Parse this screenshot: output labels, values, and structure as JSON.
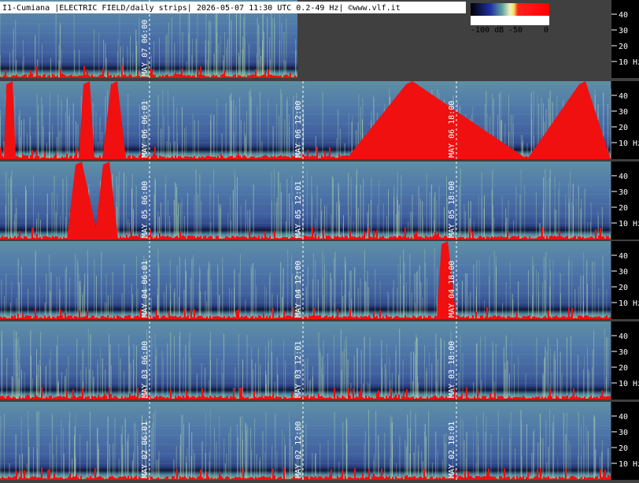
{
  "header": {
    "title": "I1-Cumiana |ELECTRIC FIELD/daily strips| 2026-05-07 11:30 UTC 0.2-49 Hz| ©www.vlf.it"
  },
  "colorbar": {
    "labels": [
      "-100 dB",
      "-50",
      "0"
    ]
  },
  "frequency_labels": [
    "40",
    "30",
    "20",
    "10 Hz"
  ],
  "strips": [
    {
      "time_labels": [
        "MAY 07 06:00"
      ]
    },
    {
      "time_labels": [
        "MAY 06 06:01",
        "MAY 06 12:00",
        "MAY 06 18:00"
      ]
    },
    {
      "time_labels": [
        "MAY 05 06:00",
        "MAY 05 12:01",
        "MAY 05 18:00"
      ]
    },
    {
      "time_labels": [
        "MAY 04 06:01",
        "MAY 04 12:00",
        "MAY 04 18:00"
      ]
    },
    {
      "time_labels": [
        "MAY 03 06:00",
        "MAY 03 12:01",
        "MAY 03 18:00"
      ]
    },
    {
      "time_labels": [
        "MAY 02 06:01",
        "MAY 02 12:00",
        "MAY 02 18:01"
      ]
    }
  ]
}
